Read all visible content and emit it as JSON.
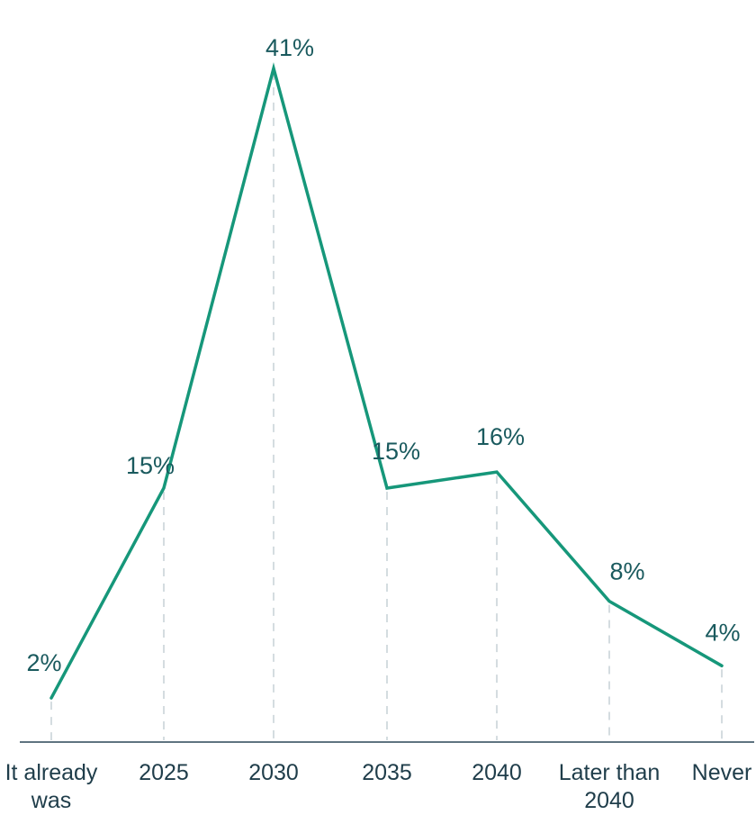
{
  "chart_data": {
    "type": "line",
    "categories": [
      [
        "It already",
        "was"
      ],
      [
        "2025"
      ],
      [
        "2030"
      ],
      [
        "2035"
      ],
      [
        "2040"
      ],
      [
        "Later than",
        "2040"
      ],
      [
        "Never"
      ]
    ],
    "series": [
      {
        "values": [
          2,
          15,
          41,
          15,
          16,
          8,
          4
        ]
      }
    ],
    "value_suffix": "%",
    "ylim": [
      0,
      43
    ],
    "grid": false,
    "guide_lines": "dashed vertical",
    "colors": {
      "line": "#16977a",
      "axis": "#5f7480",
      "guide": "#c9d3d8",
      "text": "#1f3d4a",
      "label": "#1a5a5e"
    }
  }
}
